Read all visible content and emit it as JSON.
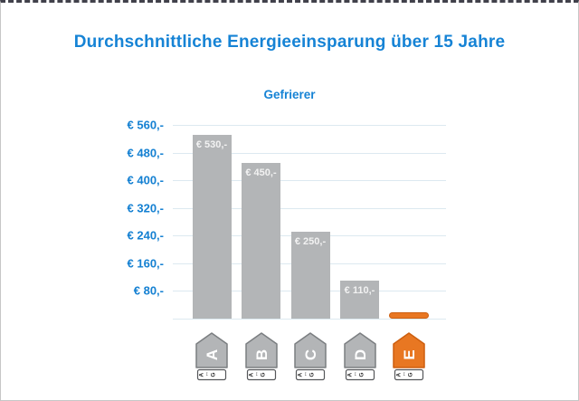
{
  "frame": {
    "title": "Durchschnittliche Energieeinsparung über 15 Jahre",
    "subtitle": "Gefrierer"
  },
  "colors": {
    "accent_blue": "#1683d5",
    "bar_gray": "#b3b5b7",
    "bar_gray_border": "#7b7e81",
    "highlight_orange": "#e87722",
    "highlight_orange_border": "#cd5f0f",
    "gridline": "#dce9f0",
    "tag_strip_border": "#55575a",
    "tag_letter": "#ffffff"
  },
  "chart_data": {
    "type": "bar",
    "title": "Durchschnittliche Energieeinsparung über 15 Jahre",
    "subtitle": "Gefrierer",
    "categories": [
      "A",
      "B",
      "C",
      "D",
      "E"
    ],
    "values": [
      530,
      450,
      250,
      110,
      10
    ],
    "bar_value_labels": [
      "€ 530,-",
      "€ 450,-",
      "€ 250,-",
      "€ 110,-",
      ""
    ],
    "y_axis": {
      "tick_values": [
        560,
        480,
        400,
        320,
        240,
        160,
        80
      ],
      "tick_labels": [
        "€ 560,-",
        "€ 480,-",
        "€ 400,-",
        "€ 320,-",
        "€ 240,-",
        "€ 160,-",
        "€ 80,-"
      ],
      "range": [
        0,
        560
      ]
    },
    "xlabel": "",
    "ylabel": "",
    "grid": "horizontal",
    "legend_position": "none",
    "highlight": {
      "category": "E",
      "style": "orange-pill"
    }
  },
  "energy_tags": [
    {
      "letter": "A",
      "variant": "gray",
      "scale_text": "A↔G"
    },
    {
      "letter": "B",
      "variant": "gray",
      "scale_text": "A↔G"
    },
    {
      "letter": "C",
      "variant": "gray",
      "scale_text": "A↔G"
    },
    {
      "letter": "D",
      "variant": "gray",
      "scale_text": "A↔G"
    },
    {
      "letter": "E",
      "variant": "orange",
      "scale_text": "A↔G"
    }
  ]
}
